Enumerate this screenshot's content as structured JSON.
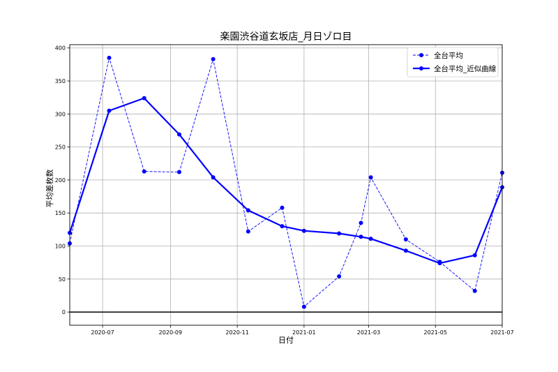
{
  "chart_data": {
    "type": "line",
    "title": "楽園渋谷道玄坂店_月日ゾロ目",
    "xlabel": "日付",
    "ylabel": "平均差枚数",
    "x_tick_labels": [
      "2020-07",
      "2020-09",
      "2020-11",
      "2021-01",
      "2021-03",
      "2021-05",
      "2021-07"
    ],
    "x_ticks": [
      "2020-07-01",
      "2020-09-01",
      "2020-11-01",
      "2021-01-01",
      "2021-03-01",
      "2021-05-01",
      "2021-07-01"
    ],
    "xlim": [
      "2020-06-01",
      "2021-07-01"
    ],
    "ylim": [
      -20,
      405
    ],
    "y_ticks": [
      0,
      50,
      100,
      150,
      200,
      250,
      300,
      350,
      400
    ],
    "grid": true,
    "legend_position": "top-right",
    "zero_line": true,
    "series": [
      {
        "name": "全台平均",
        "color": "#0000ff",
        "style": "dashed",
        "marker": "circle",
        "points": [
          {
            "x": "2020-06-01",
            "y": 104
          },
          {
            "x": "2020-07-07",
            "y": 385
          },
          {
            "x": "2020-08-08",
            "y": 213
          },
          {
            "x": "2020-09-09",
            "y": 212
          },
          {
            "x": "2020-10-10",
            "y": 383
          },
          {
            "x": "2020-11-11",
            "y": 122
          },
          {
            "x": "2020-12-12",
            "y": 158
          },
          {
            "x": "2021-01-01",
            "y": 8
          },
          {
            "x": "2021-02-02",
            "y": 54
          },
          {
            "x": "2021-02-22",
            "y": 135
          },
          {
            "x": "2021-03-03",
            "y": 204
          },
          {
            "x": "2021-04-04",
            "y": 110
          },
          {
            "x": "2021-05-05",
            "y": 76
          },
          {
            "x": "2021-06-06",
            "y": 32
          },
          {
            "x": "2021-07-01",
            "y": 211
          }
        ]
      },
      {
        "name": "全台平均_近似曲線",
        "color": "#0000ff",
        "style": "solid",
        "marker": "circle",
        "points": [
          {
            "x": "2020-06-01",
            "y": 120
          },
          {
            "x": "2020-07-07",
            "y": 305
          },
          {
            "x": "2020-08-08",
            "y": 324
          },
          {
            "x": "2020-09-09",
            "y": 269
          },
          {
            "x": "2020-10-10",
            "y": 204
          },
          {
            "x": "2020-11-11",
            "y": 154
          },
          {
            "x": "2020-12-12",
            "y": 130
          },
          {
            "x": "2021-01-01",
            "y": 123
          },
          {
            "x": "2021-02-02",
            "y": 119
          },
          {
            "x": "2021-02-22",
            "y": 114
          },
          {
            "x": "2021-03-03",
            "y": 111
          },
          {
            "x": "2021-04-04",
            "y": 93
          },
          {
            "x": "2021-05-05",
            "y": 74
          },
          {
            "x": "2021-06-06",
            "y": 86
          },
          {
            "x": "2021-07-01",
            "y": 189
          }
        ]
      }
    ]
  }
}
